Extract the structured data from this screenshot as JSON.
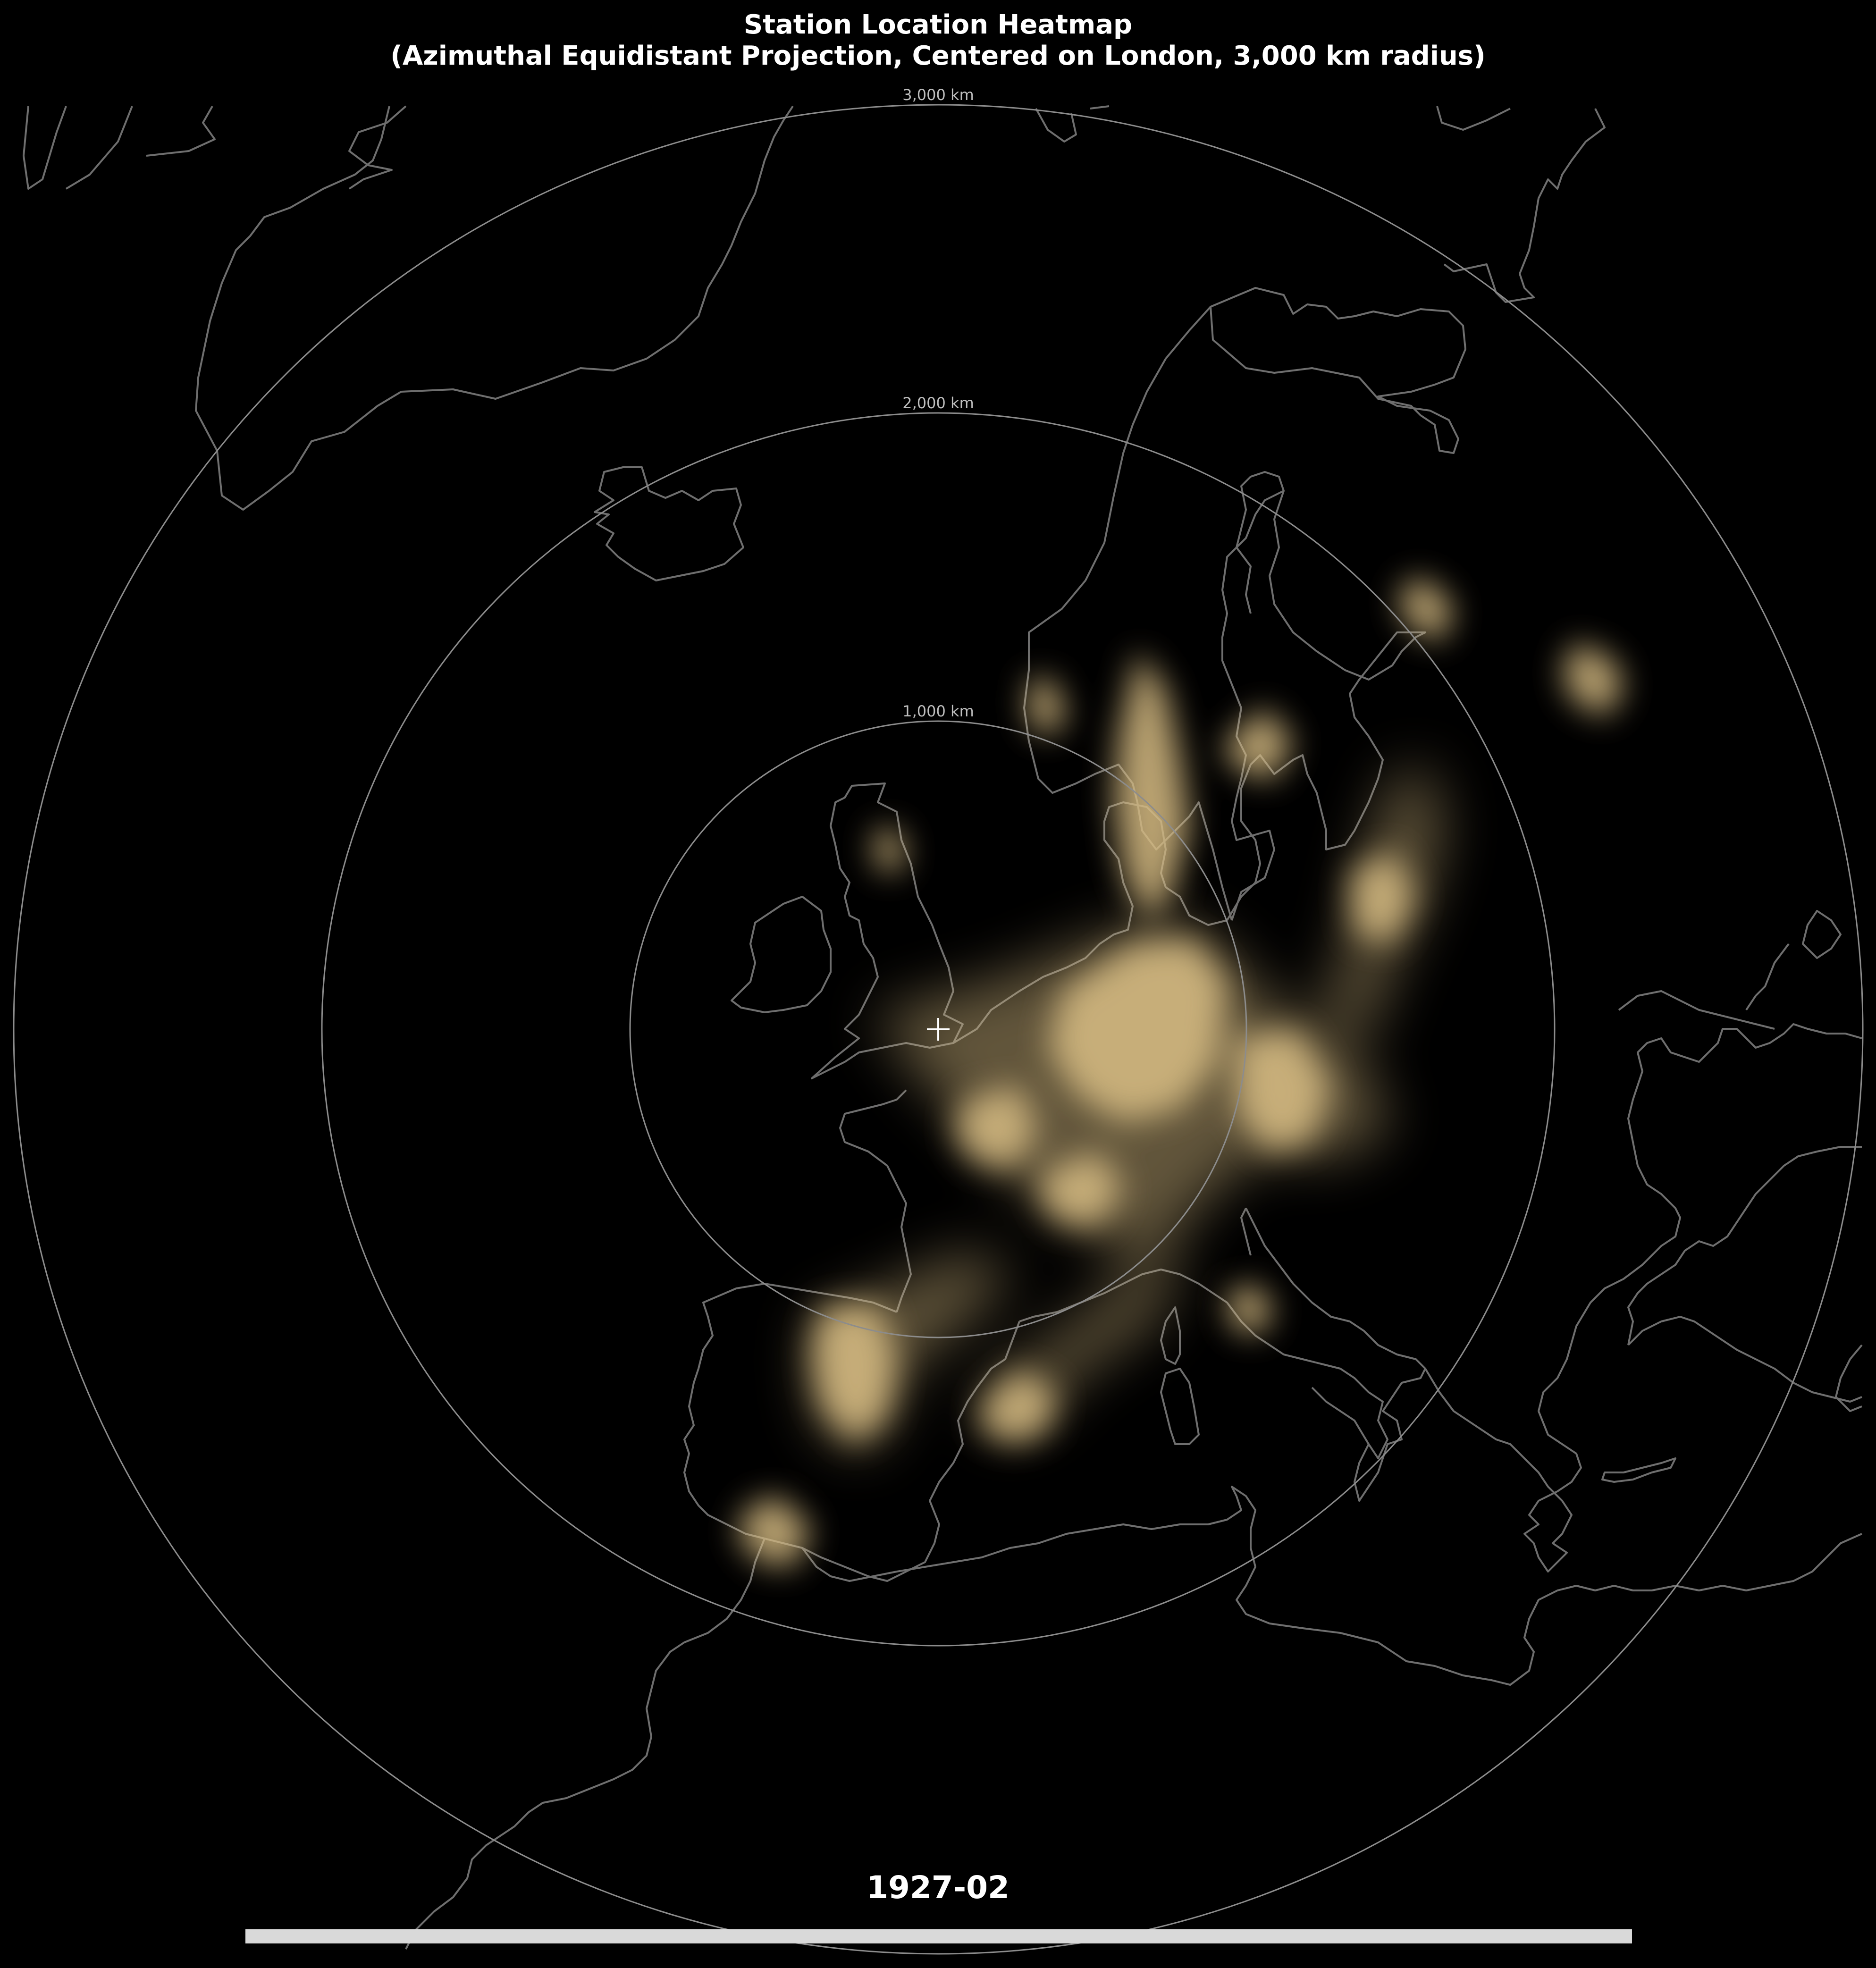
{
  "title": {
    "line1": "Station Location Heatmap",
    "line2": "(Azimuthal Equidistant Projection, Centered on London, 3,000 km radius)"
  },
  "rings": [
    {
      "label": "1,000 km",
      "distance_km": 1000
    },
    {
      "label": "2,000 km",
      "distance_km": 2000
    },
    {
      "label": "3,000 km",
      "distance_km": 3000
    }
  ],
  "center_marker": "plus-icon",
  "date_label": "1927-02",
  "progress": 1.0,
  "colors": {
    "background": "#000000",
    "coastline": "#6e6e6e",
    "ring": "#8c8c8c",
    "heat": "#d9be84",
    "text": "#ffffff",
    "progress_bar": "#d9d9d9"
  }
}
